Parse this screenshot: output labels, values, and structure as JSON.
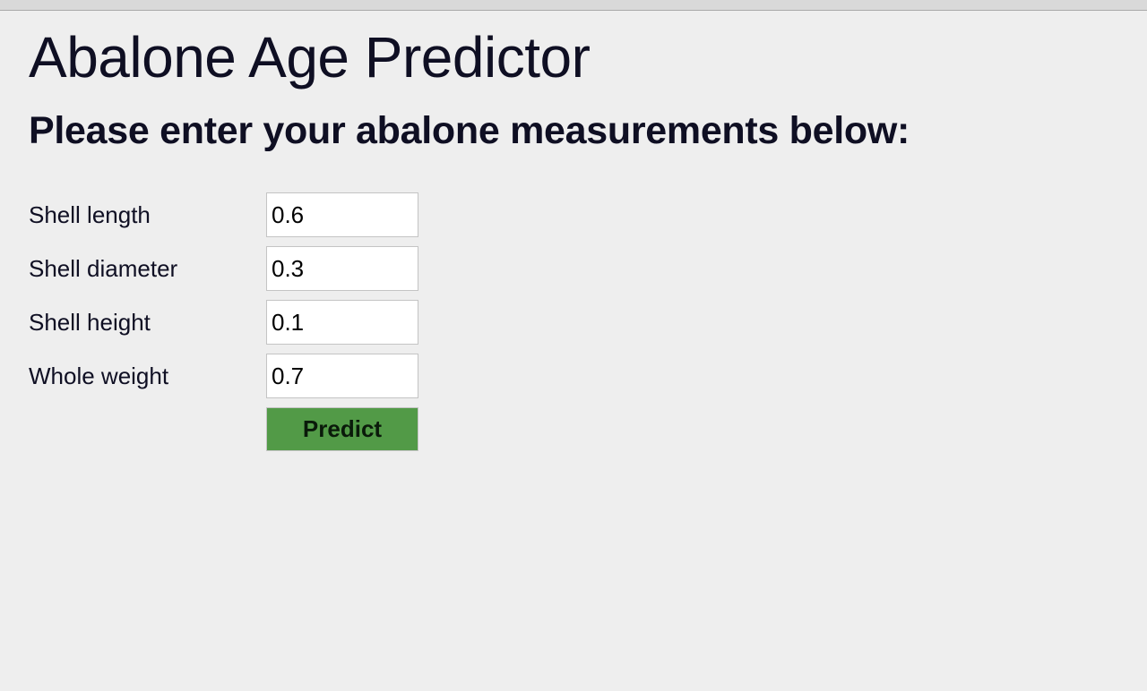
{
  "header": {
    "title": "Abalone Age Predictor",
    "subtitle": "Please enter your abalone measurements below:"
  },
  "form": {
    "fields": [
      {
        "label": "Shell length",
        "value": "0.6"
      },
      {
        "label": "Shell diameter",
        "value": "0.3"
      },
      {
        "label": "Shell height",
        "value": "0.1"
      },
      {
        "label": "Whole weight",
        "value": "0.7"
      }
    ],
    "submit_label": "Predict"
  },
  "colors": {
    "background": "#eeeeee",
    "text": "#0f0f23",
    "button": "#529a47"
  }
}
